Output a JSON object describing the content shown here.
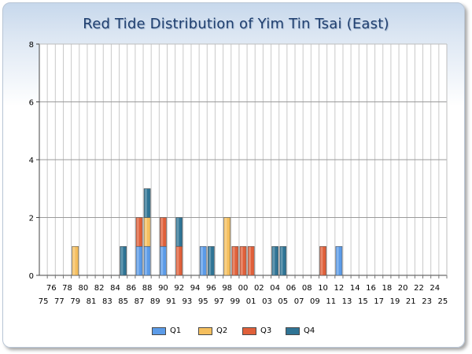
{
  "chart_data": {
    "type": "bar",
    "stacked": true,
    "title": "Red Tide Distribution of Yim Tin Tsai (East)",
    "xlabel": "",
    "ylabel": "",
    "ylim": [
      0,
      8
    ],
    "yticks": [
      0,
      2,
      4,
      6,
      8
    ],
    "grid": true,
    "legend_position": "bottom",
    "categories": [
      "75",
      "76",
      "77",
      "78",
      "79",
      "80",
      "81",
      "82",
      "83",
      "84",
      "85",
      "86",
      "87",
      "88",
      "89",
      "90",
      "91",
      "92",
      "93",
      "94",
      "95",
      "96",
      "97",
      "98",
      "99",
      "00",
      "01",
      "02",
      "03",
      "04",
      "05",
      "06",
      "07",
      "08",
      "09",
      "10",
      "11",
      "12",
      "13",
      "14",
      "15",
      "16",
      "17",
      "18",
      "19",
      "20",
      "21",
      "22",
      "23",
      "24",
      "25"
    ],
    "series": [
      {
        "name": "Q1",
        "color": "#5b9be8",
        "values": [
          0,
          0,
          0,
          0,
          0,
          0,
          0,
          0,
          0,
          0,
          0,
          0,
          1,
          1,
          0,
          1,
          0,
          0,
          0,
          0,
          1,
          0,
          0,
          0,
          0,
          0,
          0,
          0,
          0,
          0,
          0,
          0,
          0,
          0,
          0,
          0,
          0,
          1,
          0,
          0,
          0,
          0,
          0,
          0,
          0,
          0,
          0,
          0,
          0,
          0,
          0
        ]
      },
      {
        "name": "Q2",
        "color": "#f5bf5e",
        "values": [
          0,
          0,
          0,
          0,
          1,
          0,
          0,
          0,
          0,
          0,
          0,
          0,
          0,
          1,
          0,
          0,
          0,
          0,
          0,
          0,
          0,
          0,
          0,
          2,
          0,
          0,
          0,
          0,
          0,
          0,
          0,
          0,
          0,
          0,
          0,
          0,
          0,
          0,
          0,
          0,
          0,
          0,
          0,
          0,
          0,
          0,
          0,
          0,
          0,
          0,
          0
        ]
      },
      {
        "name": "Q3",
        "color": "#e0603a",
        "values": [
          0,
          0,
          0,
          0,
          0,
          0,
          0,
          0,
          0,
          0,
          0,
          0,
          1,
          0,
          0,
          1,
          0,
          1,
          0,
          0,
          0,
          0,
          0,
          0,
          1,
          1,
          1,
          0,
          0,
          0,
          0,
          0,
          0,
          0,
          0,
          1,
          0,
          0,
          0,
          0,
          0,
          0,
          0,
          0,
          0,
          0,
          0,
          0,
          0,
          0,
          0
        ]
      },
      {
        "name": "Q4",
        "color": "#2f7495",
        "values": [
          0,
          0,
          0,
          0,
          0,
          0,
          0,
          0,
          0,
          0,
          1,
          0,
          0,
          1,
          0,
          0,
          0,
          1,
          0,
          0,
          0,
          1,
          0,
          0,
          0,
          0,
          0,
          0,
          0,
          1,
          1,
          0,
          0,
          0,
          0,
          0,
          0,
          0,
          0,
          0,
          0,
          0,
          0,
          0,
          0,
          0,
          0,
          0,
          0,
          0,
          0
        ]
      }
    ]
  }
}
